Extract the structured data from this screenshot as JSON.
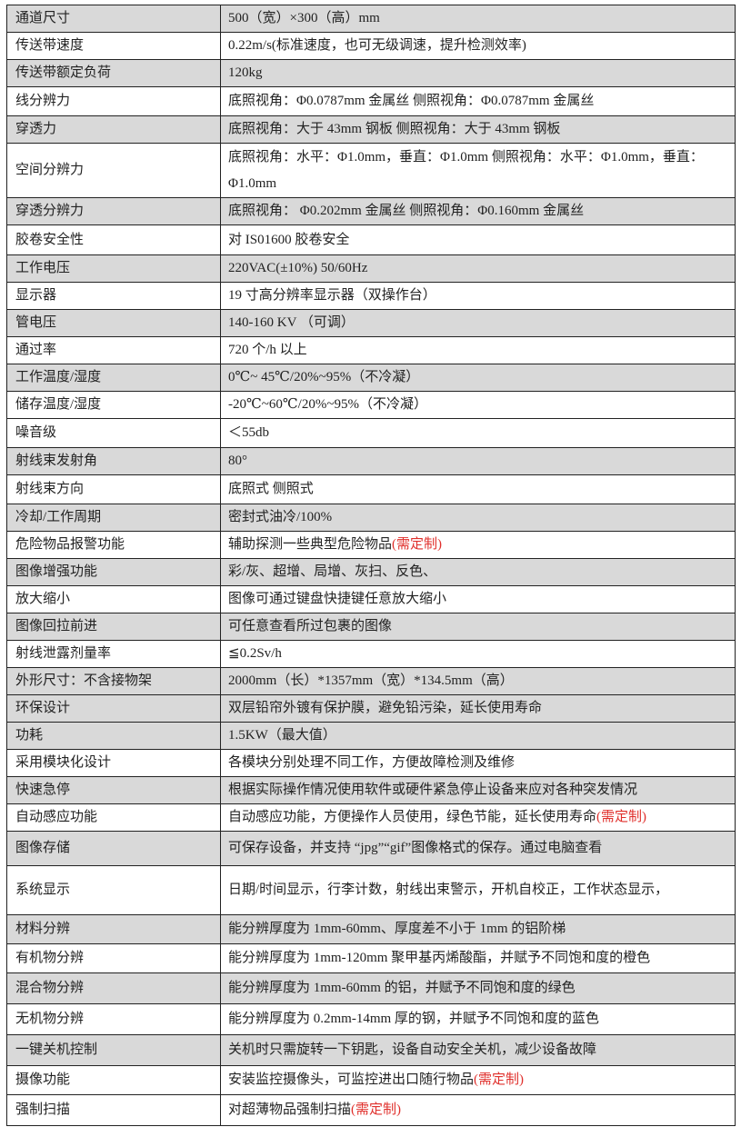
{
  "table": {
    "rows": [
      {
        "label": "通道尺寸",
        "value": "500（宽）×300（高）mm",
        "shaded": true
      },
      {
        "label": "传送带速度",
        "value": "0.22m/s(标准速度，也可无级调速，提升检测效率)",
        "shaded": false
      },
      {
        "label": "传送带额定负荷",
        "value": "120kg",
        "shaded": true
      },
      {
        "label": "线分辨力",
        "value": "底照视角：Φ0.0787mm 金属丝  侧照视角：Φ0.0787mm 金属丝",
        "shaded": false
      },
      {
        "label": "穿透力",
        "value": "底照视角：大于 43mm 钢板   侧照视角：大于 43mm 钢板",
        "shaded": true
      },
      {
        "label": "空间分辨力",
        "value": "底照视角：水平：Φ1.0mm，垂直：Φ1.0mm 侧照视角：水平：Φ1.0mm，垂直：Φ1.0mm",
        "shaded": false
      },
      {
        "label": "穿透分辨力",
        "value": "底照视角：  Φ0.202mm 金属丝   侧照视角：Φ0.160mm 金属丝",
        "shaded": true
      },
      {
        "label": "胶卷安全性",
        "value": "对 IS01600 胶卷安全",
        "shaded": false
      },
      {
        "label": "工作电压",
        "value": "220VAC(±10%) 50/60Hz",
        "shaded": true
      },
      {
        "label": "显示器",
        "value": "19 寸高分辨率显示器（双操作台）",
        "shaded": false
      },
      {
        "label": "管电压",
        "value": "140-160 KV （可调）",
        "shaded": true
      },
      {
        "label": "通过率",
        "value": "720 个/h 以上",
        "shaded": false
      },
      {
        "label": "工作温度/湿度",
        "value": "0℃~ 45℃/20%~95%（不冷凝）",
        "shaded": true
      },
      {
        "label": "储存温度/湿度",
        "value": "-20℃~60℃/20%~95%（不冷凝）",
        "shaded": false
      },
      {
        "label": "噪音级",
        "value": "＜55db",
        "shaded": false
      },
      {
        "label": "射线束发射角",
        "value": "80°",
        "shaded": true
      },
      {
        "label": "射线束方向",
        "value": "底照式 侧照式",
        "shaded": false
      },
      {
        "label": "冷却/工作周期",
        "value": "密封式油冷/100%",
        "shaded": true
      },
      {
        "label": "危险物品报警功能",
        "value": "辅助探测一些典型危险物品",
        "note": "(需定制)",
        "shaded": false
      },
      {
        "label": "图像增强功能",
        "value": "彩/灰、超增、局增、灰扫、反色、",
        "shaded": true
      },
      {
        "label": "放大缩小",
        "value": "图像可通过键盘快捷键任意放大缩小",
        "shaded": false
      },
      {
        "label": "图像回拉前进",
        "value": "可任意查看所过包裹的图像",
        "shaded": true
      },
      {
        "label": "射线泄露剂量率",
        "value": "≦0.2Sv/h",
        "shaded": false
      },
      {
        "label": "外形尺寸：不含接物架",
        "value": "2000mm（长）*1357mm（宽）*134.5mm（高）",
        "shaded": true
      },
      {
        "label": "环保设计",
        "value": "双层铅帘外镀有保护膜，避免铅污染，延长使用寿命",
        "shaded": true
      },
      {
        "label": "功耗",
        "value": "1.5KW（最大值）",
        "shaded": true
      },
      {
        "label": "采用模块化设计",
        "value": "各模块分别处理不同工作，方便故障检测及维修",
        "shaded": false
      },
      {
        "label": "快速急停",
        "value": "根据实际操作情况使用软件或硬件紧急停止设备来应对各种突发情况",
        "shaded": true
      },
      {
        "label": "自动感应功能",
        "value": "自动感应功能，方便操作人员使用，绿色节能，延长使用寿命",
        "note": "(需定制)",
        "shaded": false
      },
      {
        "label": "图像存储",
        "value": "可保存设备，并支持 “jpg”“gif”图像格式的保存。通过电脑查看",
        "shaded": true
      },
      {
        "label": "系统显示",
        "value": "日期/时间显示，行李计数，射线出束警示，开机自校正，工作状态显示，",
        "shaded": false
      },
      {
        "label": "材料分辨",
        "value": "能分辨厚度为 1mm-60mm、厚度差不小于 1mm 的铝阶梯",
        "shaded": true
      },
      {
        "label": "有机物分辨",
        "value": "能分辨厚度为 1mm-120mm 聚甲基丙烯酸酯，并赋予不同饱和度的橙色",
        "shaded": false
      },
      {
        "label": "混合物分辨",
        "value": "能分辨厚度为 1mm-60mm 的铝，并赋予不同饱和度的绿色",
        "shaded": true
      },
      {
        "label": "无机物分辨",
        "value": "能分辨厚度为 0.2mm-14mm 厚的钢，并赋予不同饱和度的蓝色",
        "shaded": false
      },
      {
        "label": "一键关机控制",
        "value": "关机时只需旋转一下钥匙，设备自动安全关机，减少设备故障",
        "shaded": true
      },
      {
        "label": "摄像功能",
        "value": "安装监控摄像头，可监控进出口随行物品",
        "note": "(需定制)",
        "shaded": false
      },
      {
        "label": "强制扫描",
        "value": "对超薄物品强制扫描",
        "note": "(需定制)",
        "shaded": false
      }
    ]
  },
  "colors": {
    "shaded_row": "#d9d9d9",
    "note_text": "#e0302c",
    "border": "#222222"
  }
}
